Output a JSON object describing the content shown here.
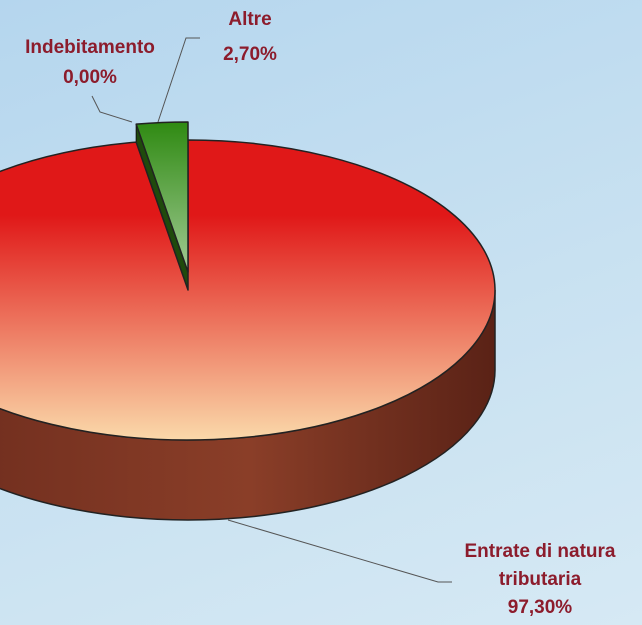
{
  "chart_data": {
    "type": "pie3d",
    "categories": [
      "Indebitamento",
      "Altre",
      "Entrate di natura tributaria"
    ],
    "values": [
      0.0,
      2.7,
      97.3
    ],
    "value_labels": [
      "0,00%",
      "2,70%",
      "97,30%"
    ],
    "colors": [
      "#8a8a8a",
      "#2f8a12",
      "#e01818"
    ]
  }
}
